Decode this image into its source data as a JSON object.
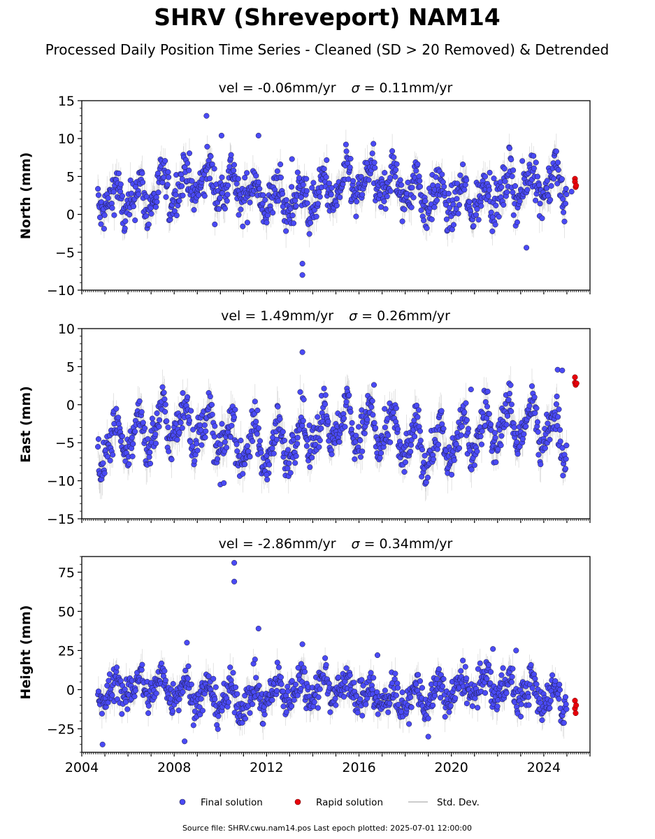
{
  "title": "SHRV (Shreveport) NAM14",
  "subtitle": "Processed Daily Position Time Series - Cleaned (SD > 20 Removed) & Detrended",
  "colors": {
    "final": "#4a4af5",
    "final_edge": "#1a1a40",
    "rapid": "#e8000b",
    "std": "#9a9a9a",
    "axis": "#000000"
  },
  "legend": {
    "final": "Final solution",
    "rapid": "Rapid solution",
    "std": "Std. Dev."
  },
  "footer": "Source file: SHRV.cwu.nam14.pos  Last epoch plotted: 2025-07-01 12:00:00",
  "chart_data": [
    {
      "type": "scatter",
      "name": "north",
      "title": "vel = -0.06mm/yr   σ = 0.11mm/yr",
      "vel_text": "vel = -0.06mm/yr",
      "sigma_text": "= 0.11mm/yr",
      "ylabel": "North (mm)",
      "xlim": [
        2004.0,
        2026.0
      ],
      "ylim": [
        -10,
        15
      ],
      "yticks": [
        -10,
        -5,
        0,
        5,
        10,
        15
      ],
      "series_params": {
        "base": 3.0,
        "seasonal": 2.0,
        "noise": 1.4,
        "std": 1.6,
        "drift": 0.0
      },
      "outliers": [
        {
          "x": 2010.05,
          "y": 10.4
        },
        {
          "x": 2011.65,
          "y": 10.4
        },
        {
          "x": 2013.1,
          "y": 7.3
        },
        {
          "x": 2013.55,
          "y": -6.5
        },
        {
          "x": 2013.55,
          "y": -8.0
        },
        {
          "x": 2023.25,
          "y": -4.4
        },
        {
          "x": 2009.4,
          "y": 13.0
        },
        {
          "x": 2025.2,
          "y": 3.0
        }
      ],
      "rapid": [
        {
          "x": 2025.35,
          "y": 4.7
        },
        {
          "x": 2025.35,
          "y": 4.3
        },
        {
          "x": 2025.38,
          "y": 3.6
        },
        {
          "x": 2025.4,
          "y": 3.8
        }
      ]
    },
    {
      "type": "scatter",
      "name": "east",
      "title": "vel = 1.49mm/yr   σ = 0.26mm/yr",
      "vel_text": "vel = 1.49mm/yr",
      "sigma_text": "= 0.26mm/yr",
      "ylabel": "East (mm)",
      "xlim": [
        2004.0,
        2026.0
      ],
      "ylim": [
        -15,
        10
      ],
      "yticks": [
        -15,
        -10,
        -5,
        0,
        5,
        10
      ],
      "series_params": {
        "base": -4.0,
        "seasonal": 2.6,
        "noise": 1.3,
        "std": 1.8,
        "drift": 0.0
      },
      "outliers": [
        {
          "x": 2013.55,
          "y": 6.9
        },
        {
          "x": 2010.0,
          "y": -10.5
        },
        {
          "x": 2010.15,
          "y": -10.3
        },
        {
          "x": 2012.0,
          "y": -9.2
        },
        {
          "x": 2016.65,
          "y": 2.6
        },
        {
          "x": 2020.85,
          "y": 2.0
        },
        {
          "x": 2024.6,
          "y": 4.6
        },
        {
          "x": 2024.8,
          "y": 4.5
        }
      ],
      "rapid": [
        {
          "x": 2025.35,
          "y": 3.6
        },
        {
          "x": 2025.35,
          "y": 2.9
        },
        {
          "x": 2025.38,
          "y": 2.6
        },
        {
          "x": 2025.42,
          "y": 2.8
        }
      ]
    },
    {
      "type": "scatter",
      "name": "height",
      "title": "vel = -2.86mm/yr   σ = 0.34mm/yr",
      "vel_text": "vel = -2.86mm/yr",
      "sigma_text": "= 0.34mm/yr",
      "ylabel": "Height (mm)",
      "xlim": [
        2004.0,
        2026.0
      ],
      "ylim": [
        -40,
        85
      ],
      "yticks": [
        -25,
        0,
        25,
        50,
        75
      ],
      "series_params": {
        "base": -2.0,
        "seasonal": 7.0,
        "noise": 5.5,
        "std": 7.0,
        "drift": 0.0
      },
      "outliers": [
        {
          "x": 2010.6,
          "y": 81.0
        },
        {
          "x": 2010.6,
          "y": 69.0
        },
        {
          "x": 2011.65,
          "y": 39.0
        },
        {
          "x": 2008.55,
          "y": 30.0
        },
        {
          "x": 2013.55,
          "y": 29.0
        },
        {
          "x": 2008.45,
          "y": -33.0
        },
        {
          "x": 2004.9,
          "y": -35.0
        },
        {
          "x": 2019.0,
          "y": -30.0
        },
        {
          "x": 2021.8,
          "y": 26.0
        },
        {
          "x": 2016.8,
          "y": 22.0
        },
        {
          "x": 2022.8,
          "y": 25.0
        }
      ],
      "rapid": [
        {
          "x": 2025.35,
          "y": -7.0
        },
        {
          "x": 2025.35,
          "y": -12.0
        },
        {
          "x": 2025.38,
          "y": -15.0
        },
        {
          "x": 2025.4,
          "y": -10.0
        }
      ]
    }
  ],
  "xticks": [
    "2004",
    "2008",
    "2012",
    "2016",
    "2020",
    "2024"
  ],
  "xtick_values": [
    2004,
    2008,
    2012,
    2016,
    2020,
    2024
  ],
  "data_range": [
    2004.7,
    2025.0
  ]
}
